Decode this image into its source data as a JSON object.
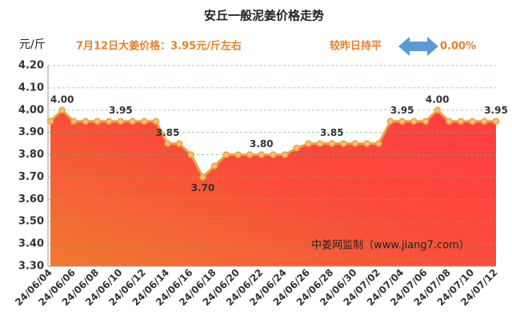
{
  "chart_data": {
    "type": "area-line",
    "title": "安丘一般泥姜价格走势",
    "y_unit": "元/斤",
    "headline": "7月12日大姜价格：3.95元/斤左右",
    "change_text": "较昨日持平",
    "change_value": "0.00%",
    "watermark": "中姜网监制（www.jiang7.com）",
    "categories": [
      "24/06/04",
      null,
      "24/06/06",
      null,
      "24/06/08",
      null,
      "24/06/10",
      null,
      "24/06/12",
      null,
      "24/06/14",
      null,
      "24/06/16",
      null,
      "24/06/18",
      null,
      "24/06/20",
      null,
      "24/06/22",
      null,
      "24/06/24",
      null,
      "24/06/26",
      null,
      "24/06/28",
      null,
      "24/06/30",
      null,
      "24/07/02",
      null,
      "24/07/04",
      null,
      "24/07/06",
      null,
      "24/07/08",
      null,
      "24/07/10",
      null,
      "24/07/12"
    ],
    "values": [
      3.95,
      4.0,
      3.95,
      3.95,
      3.95,
      3.95,
      3.95,
      3.95,
      3.95,
      3.95,
      3.85,
      3.85,
      3.8,
      3.7,
      3.75,
      3.8,
      3.8,
      3.8,
      3.8,
      3.8,
      3.8,
      3.83,
      3.85,
      3.85,
      3.85,
      3.85,
      3.85,
      3.85,
      3.85,
      3.95,
      3.95,
      3.95,
      3.95,
      4.0,
      3.95,
      3.95,
      3.95,
      3.95,
      3.95
    ],
    "value_labels": [
      null,
      "4.00",
      null,
      null,
      null,
      null,
      "3.95",
      null,
      null,
      null,
      "3.85",
      null,
      null,
      "3.70",
      null,
      null,
      null,
      null,
      "3.80",
      null,
      null,
      null,
      null,
      null,
      "3.85",
      null,
      null,
      null,
      null,
      null,
      "3.95",
      null,
      null,
      "4.00",
      null,
      null,
      null,
      null,
      "3.95"
    ],
    "color": "#f0a040",
    "ylim": [
      3.3,
      4.2
    ],
    "yticks": [
      {
        "value": 3.3,
        "label": "3.30"
      },
      {
        "value": 3.4,
        "label": "3.40"
      },
      {
        "value": 3.5,
        "label": "3.50"
      },
      {
        "value": 3.6,
        "label": "3.60"
      },
      {
        "value": 3.7,
        "label": "3.70"
      },
      {
        "value": 3.8,
        "label": "3.80"
      },
      {
        "value": 3.9,
        "label": "3.90"
      },
      {
        "value": 4.0,
        "label": "4.00"
      },
      {
        "value": 4.1,
        "label": "4.10"
      },
      {
        "value": 4.2,
        "label": "4.20"
      }
    ],
    "grid": true
  }
}
